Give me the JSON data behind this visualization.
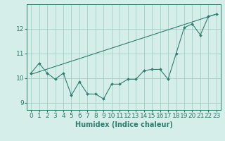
{
  "x": [
    0,
    1,
    2,
    3,
    4,
    5,
    6,
    7,
    8,
    9,
    10,
    11,
    12,
    13,
    14,
    15,
    16,
    17,
    18,
    19,
    20,
    21,
    22,
    23
  ],
  "y_scatter": [
    10.2,
    10.6,
    10.2,
    9.95,
    10.2,
    9.3,
    9.85,
    9.35,
    9.35,
    9.15,
    9.75,
    9.75,
    9.95,
    9.95,
    10.3,
    10.35,
    10.35,
    9.95,
    11.0,
    12.05,
    12.2,
    11.75,
    12.5,
    12.6
  ],
  "trend_x": [
    0,
    23
  ],
  "trend_y": [
    10.15,
    12.6
  ],
  "line_color": "#2e7d6e",
  "bg_color": "#d6eeea",
  "grid_color": "#a0cfc8",
  "xlabel": "Humidex (Indice chaleur)",
  "xlabel_fontsize": 7,
  "ylabel_ticks": [
    9,
    10,
    11,
    12
  ],
  "xlim": [
    -0.5,
    23.5
  ],
  "ylim": [
    8.7,
    13.0
  ],
  "tick_fontsize": 6.5
}
